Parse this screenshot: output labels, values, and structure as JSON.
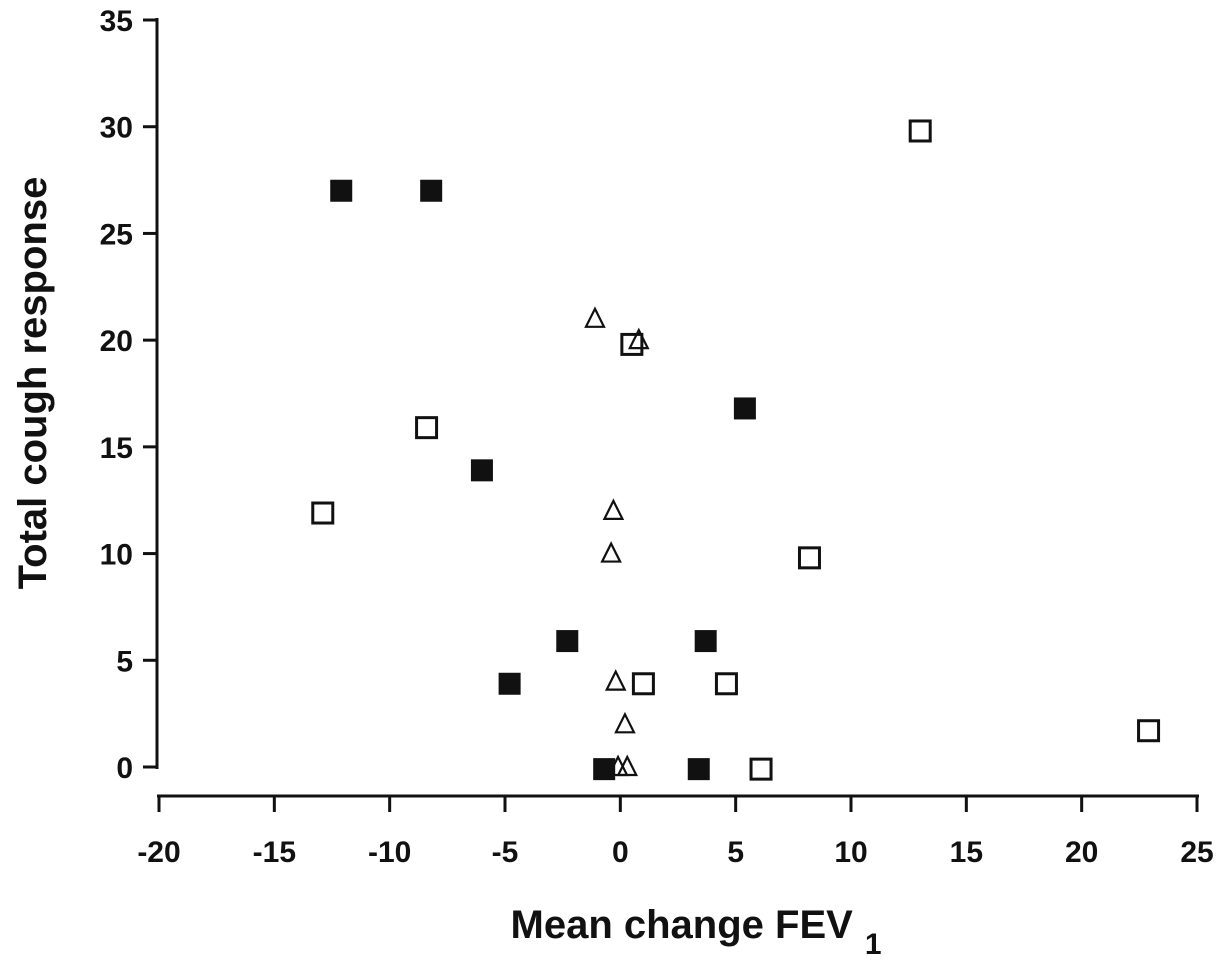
{
  "chart_data": {
    "type": "scatter",
    "title": "",
    "xlabel": "Mean change FEV",
    "xlabel_subscript": "1",
    "ylabel": "Total cough response",
    "xlim": [
      -20,
      25
    ],
    "ylim": [
      0,
      35
    ],
    "x_ticks": [
      -20,
      -15,
      -10,
      -5,
      0,
      5,
      10,
      15,
      20,
      25
    ],
    "y_ticks": [
      0,
      5,
      10,
      15,
      20,
      25,
      30,
      35
    ],
    "grid": false,
    "legend": "none",
    "series": [
      {
        "marker": "filled-square",
        "color": "#111111",
        "points": [
          [
            -12.1,
            27
          ],
          [
            -8.2,
            27
          ],
          [
            5.4,
            16.8
          ],
          [
            -6.0,
            13.9
          ],
          [
            -2.3,
            5.9
          ],
          [
            3.7,
            5.9
          ],
          [
            -4.8,
            3.9
          ],
          [
            -0.7,
            -0.1
          ],
          [
            3.4,
            -0.1
          ]
        ]
      },
      {
        "marker": "open-square",
        "color": "#111111",
        "points": [
          [
            13.0,
            29.8
          ],
          [
            0.5,
            19.8
          ],
          [
            -8.4,
            15.9
          ],
          [
            -12.9,
            11.9
          ],
          [
            8.2,
            9.8
          ],
          [
            1.0,
            3.9
          ],
          [
            4.6,
            3.9
          ],
          [
            22.9,
            1.7
          ],
          [
            6.1,
            -0.1
          ]
        ]
      },
      {
        "marker": "open-triangle",
        "color": "#111111",
        "points": [
          [
            -1.1,
            21.0
          ],
          [
            0.8,
            20.0
          ],
          [
            -0.3,
            12.0
          ],
          [
            -0.4,
            10.0
          ],
          [
            -0.2,
            4.0
          ],
          [
            0.2,
            2.0
          ],
          [
            -0.1,
            0.0
          ],
          [
            0.3,
            0.0
          ]
        ]
      }
    ]
  }
}
